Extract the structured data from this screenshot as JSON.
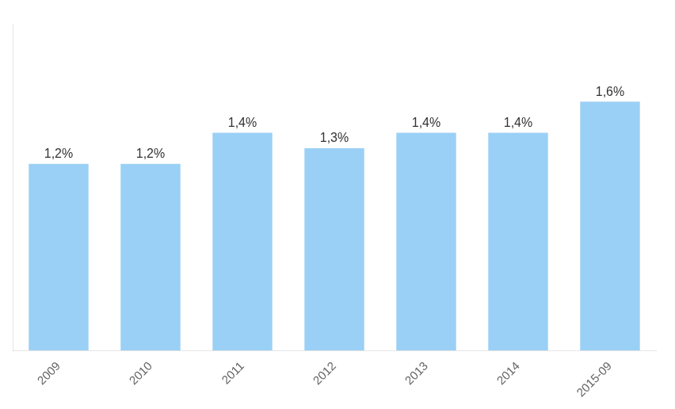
{
  "chart_data": {
    "type": "bar",
    "categories": [
      "2009",
      "2010",
      "2011",
      "2012",
      "2013",
      "2014",
      "2015-09"
    ],
    "values": [
      1.2,
      1.2,
      1.4,
      1.3,
      1.4,
      1.4,
      1.6
    ],
    "value_labels": [
      "1,2%",
      "1,2%",
      "1,4%",
      "1,3%",
      "1,4%",
      "1,4%",
      "1,6%"
    ],
    "ylim": [
      0,
      2.1
    ],
    "data_labels": true,
    "grid": false,
    "tick_labels": "x"
  }
}
